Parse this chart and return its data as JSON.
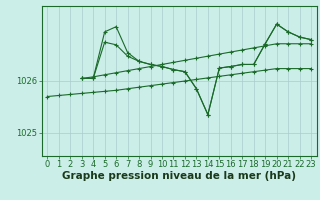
{
  "bg_color": "#cceee8",
  "grid_color": "#aacccc",
  "line_color": "#1a6b2a",
  "xlabel": "Graphe pression niveau de la mer (hPa)",
  "xlabel_fontsize": 7.5,
  "tick_fontsize": 6.0,
  "ylim": [
    1024.55,
    1027.45
  ],
  "xlim": [
    -0.5,
    23.5
  ],
  "yticks": [
    1025,
    1026
  ],
  "xticks": [
    0,
    1,
    2,
    3,
    4,
    5,
    6,
    7,
    8,
    9,
    10,
    11,
    12,
    13,
    14,
    15,
    16,
    17,
    18,
    19,
    20,
    21,
    22,
    23
  ],
  "line1_x": [
    0,
    1,
    2,
    3,
    4,
    5,
    6,
    7,
    8,
    9,
    10,
    11,
    12,
    13,
    14,
    15,
    16,
    17,
    18,
    19,
    20,
    21,
    22,
    23
  ],
  "line1": [
    1025.7,
    1025.72,
    1025.74,
    1025.76,
    1025.78,
    1025.8,
    1025.82,
    1025.85,
    1025.88,
    1025.91,
    1025.94,
    1025.97,
    1026.0,
    1026.03,
    1026.06,
    1026.09,
    1026.12,
    1026.15,
    1026.18,
    1026.21,
    1026.24,
    1026.24,
    1026.24,
    1026.24
  ],
  "line2_x": [
    3,
    4,
    5,
    6,
    7,
    8,
    9,
    10,
    11,
    12,
    13,
    14,
    15,
    16,
    17,
    18,
    19,
    20,
    21,
    22,
    23
  ],
  "line2": [
    1026.05,
    1026.08,
    1026.12,
    1026.16,
    1026.2,
    1026.24,
    1026.28,
    1026.32,
    1026.36,
    1026.4,
    1026.44,
    1026.48,
    1026.52,
    1026.56,
    1026.6,
    1026.64,
    1026.68,
    1026.72,
    1026.72,
    1026.72,
    1026.72
  ],
  "line3_x": [
    3,
    4,
    5,
    6,
    7,
    8,
    9,
    10,
    11,
    12,
    13,
    14,
    15,
    16,
    17,
    18,
    19,
    20,
    21,
    22,
    23
  ],
  "line3": [
    1026.05,
    1026.05,
    1026.75,
    1026.7,
    1026.48,
    1026.38,
    1026.32,
    1026.28,
    1026.22,
    1026.18,
    1025.85,
    1025.35,
    1026.25,
    1026.28,
    1026.32,
    1026.32,
    1026.72,
    1027.1,
    1026.95,
    1026.85,
    1026.8
  ],
  "line4_x": [
    3,
    4,
    5,
    6,
    7,
    8,
    9,
    10,
    11,
    12,
    13,
    14,
    15,
    16,
    17,
    18,
    19,
    20,
    21,
    22,
    23
  ],
  "line4": [
    1026.05,
    1026.05,
    1026.95,
    1027.05,
    1026.55,
    1026.38,
    1026.32,
    1026.28,
    1026.22,
    1026.18,
    1025.85,
    1025.35,
    1026.25,
    1026.28,
    1026.32,
    1026.32,
    1026.72,
    1027.1,
    1026.95,
    1026.85,
    1026.8
  ]
}
